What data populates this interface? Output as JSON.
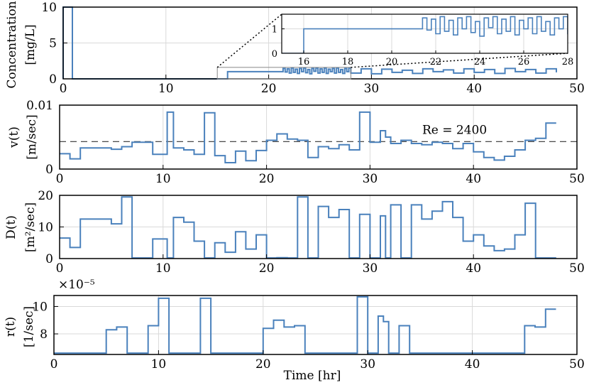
{
  "colors": {
    "line": "#4a81bc",
    "grid": "#d9d9d9",
    "axis": "#000000",
    "ref": "#333333"
  },
  "chart_data": [
    {
      "type": "line",
      "id": "concentration",
      "ylabel": "Concentration [mg/L]",
      "ylabel_lines": [
        "Concentration",
        "[mg/L]"
      ],
      "xlim": [
        0,
        50
      ],
      "ylim": [
        0,
        10
      ],
      "xticks": [
        0,
        10,
        20,
        30,
        40,
        50
      ],
      "yticks": [
        0,
        5,
        10
      ],
      "grid": true,
      "series": [
        {
          "name": "concentration",
          "x": [
            0,
            0,
            0.9,
            0.9,
            16,
            16,
            21.2,
            21.4,
            21.6,
            21.8,
            22.0,
            22.2,
            22.4,
            22.6,
            22.8,
            23.0,
            23.2,
            23.4,
            23.6,
            23.8,
            24.0,
            24.2,
            24.4,
            24.6,
            24.8,
            25.0,
            25.2,
            25.4,
            25.6,
            25.8,
            26.0,
            26.2,
            26.4,
            26.6,
            26.8,
            27.0,
            27.2,
            27.4,
            27.6,
            27.8,
            28,
            29,
            30,
            31,
            32,
            33,
            34,
            35,
            36,
            37,
            38,
            39,
            40,
            41,
            42,
            43,
            44,
            45,
            46,
            47,
            48
          ],
          "y": [
            0,
            10,
            10,
            0,
            0,
            1,
            1,
            1.45,
            0.95,
            1.4,
            0.8,
            1.5,
            0.9,
            1.35,
            0.75,
            1.45,
            1.0,
            1.5,
            0.85,
            1.3,
            0.7,
            1.45,
            1.05,
            1.5,
            0.8,
            1.4,
            0.9,
            1.5,
            0.75,
            1.35,
            1.0,
            1.45,
            0.8,
            1.5,
            0.9,
            1.3,
            0.75,
            1.45,
            1.0,
            1.5,
            0.8,
            1.4,
            0.7,
            1.35,
            0.9,
            1.2,
            0.75,
            1.4,
            1.0,
            1.25,
            0.8,
            1.4,
            0.9,
            1.3,
            0.75,
            1.45,
            1.0,
            1.3,
            0.8,
            1.4,
            0.9
          ]
        }
      ],
      "inset": {
        "xlim": [
          15,
          28
        ],
        "ylim": [
          0,
          1.6
        ],
        "xticks": [
          16,
          18,
          20,
          22,
          24,
          26,
          28
        ],
        "yticks": [
          0,
          1
        ],
        "source_region": {
          "x": [
            15,
            28
          ],
          "y": [
            0,
            1.6
          ]
        }
      }
    },
    {
      "type": "line",
      "id": "velocity",
      "ylabel": "v(t) [m/sec]",
      "ylabel_lines": [
        "v(t)",
        "[m/sec]"
      ],
      "xlim": [
        0,
        50
      ],
      "ylim": [
        0,
        0.01
      ],
      "xticks": [
        0,
        10,
        20,
        30,
        40,
        50
      ],
      "yticks": [
        0,
        0.01
      ],
      "ytick_labels": [
        "0",
        "0.01"
      ],
      "grid": true,
      "reference_line": {
        "y": 0.0043,
        "style": "dashed",
        "label": "Re = 2400"
      },
      "series": [
        {
          "name": "v(t)",
          "x": [
            0,
            1,
            2,
            4,
            5,
            6,
            7,
            9,
            10.4,
            11,
            12,
            13,
            14,
            15,
            16,
            17,
            18,
            19,
            20,
            21,
            22,
            23,
            24,
            25,
            26,
            27,
            28,
            29,
            30,
            31,
            31.5,
            32,
            33,
            34,
            35,
            36,
            37,
            38,
            39,
            40,
            41,
            42,
            43,
            44,
            45,
            46,
            47,
            48
          ],
          "y": [
            0.0024,
            0.0016,
            0.0033,
            0.0033,
            0.0031,
            0.0035,
            0.0042,
            0.0023,
            0.0089,
            0.0033,
            0.003,
            0.0023,
            0.0088,
            0.0021,
            0.001,
            0.0028,
            0.0013,
            0.0029,
            0.0045,
            0.0055,
            0.0047,
            0.0045,
            0.0018,
            0.0035,
            0.0032,
            0.0038,
            0.003,
            0.0089,
            0.0042,
            0.006,
            0.005,
            0.004,
            0.0045,
            0.004,
            0.0038,
            0.0042,
            0.004,
            0.0032,
            0.004,
            0.0027,
            0.0018,
            0.0014,
            0.002,
            0.003,
            0.0045,
            0.0048,
            0.0072,
            0.0072
          ]
        }
      ]
    },
    {
      "type": "line",
      "id": "dispersion",
      "ylabel": "D(t) [m²/sec]",
      "ylabel_lines": [
        "D(t)",
        "[m²/sec]"
      ],
      "xlim": [
        0,
        50
      ],
      "ylim": [
        0,
        20
      ],
      "xticks": [
        0,
        10,
        20,
        30,
        40,
        50
      ],
      "yticks": [
        0,
        10,
        20
      ],
      "grid": true,
      "series": [
        {
          "name": "D(t)",
          "x": [
            0,
            1,
            2,
            4,
            5,
            6,
            7,
            9,
            10.4,
            11,
            12,
            13,
            14,
            15,
            16,
            17,
            18,
            19,
            20,
            21,
            22,
            23,
            24,
            25,
            26,
            27,
            28,
            29,
            30,
            31,
            31.5,
            32,
            33,
            34,
            35,
            36,
            37,
            38,
            39,
            40,
            41,
            42,
            43,
            44,
            45,
            46,
            47,
            48
          ],
          "y": [
            6.5,
            3.5,
            12.5,
            12.5,
            11,
            19.5,
            0.2,
            6.2,
            0.2,
            13,
            11.5,
            5.5,
            0.2,
            5,
            2,
            8.5,
            3,
            7.5,
            0.2,
            0.3,
            0.2,
            19.5,
            0.2,
            16.5,
            13,
            15.5,
            0.2,
            14,
            0.2,
            13.5,
            0.2,
            17,
            0.2,
            17,
            12.5,
            15,
            18,
            13,
            5.5,
            7.5,
            4,
            2.5,
            3,
            7.5,
            17.5,
            0.2,
            0.2,
            0.2
          ]
        }
      ]
    },
    {
      "type": "line",
      "id": "rate",
      "ylabel": "r(t) [1/sec]",
      "ylabel_lines": [
        "r(t)",
        "[1/sec]"
      ],
      "xlabel": "Time [hr]",
      "exponent_label": "×10⁻⁵",
      "xlim": [
        0,
        50
      ],
      "ylim": [
        6.5,
        10.8
      ],
      "xticks": [
        0,
        10,
        20,
        30,
        40,
        50
      ],
      "yticks": [
        8,
        10
      ],
      "grid": true,
      "series": [
        {
          "name": "r(t)",
          "x": [
            0,
            5,
            6,
            7,
            9,
            10,
            11,
            12,
            14,
            15,
            17,
            20,
            21,
            22,
            23,
            24,
            25,
            27,
            29,
            30,
            31,
            31.5,
            32,
            33,
            34,
            35,
            36,
            40,
            45,
            46,
            47,
            48
          ],
          "y": [
            6.6,
            8.3,
            8.5,
            6.6,
            8.6,
            10.6,
            6.6,
            6.6,
            10.6,
            6.6,
            6.6,
            8.4,
            9.0,
            8.5,
            8.6,
            6.6,
            6.6,
            6.6,
            10.7,
            6.6,
            9.3,
            8.9,
            6.6,
            8.6,
            6.6,
            6.6,
            6.6,
            6.6,
            8.6,
            8.5,
            9.8,
            9.8
          ]
        }
      ]
    }
  ]
}
